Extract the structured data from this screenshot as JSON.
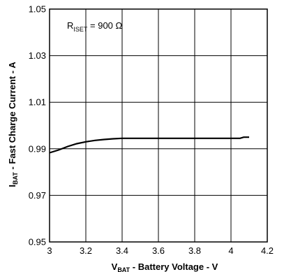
{
  "chart_data": {
    "type": "line",
    "xlabel": {
      "main": "V",
      "sub": "BAT",
      "rest": " - Battery Voltage - V"
    },
    "ylabel": {
      "main": "I",
      "sub": "BAT",
      "rest": " - Fast Charge Current - A"
    },
    "annotation": {
      "main": "R",
      "sub": "ISET",
      "rest": " = 900 Ω"
    },
    "xlim": [
      3,
      4.2
    ],
    "ylim": [
      0.95,
      1.05
    ],
    "x_ticks": [
      "3",
      "3.2",
      "3.4",
      "3.6",
      "3.8",
      "4",
      "4.2"
    ],
    "y_ticks": [
      "0.95",
      "0.97",
      "0.99",
      "1.01",
      "1.03",
      "1.05"
    ],
    "grid": true,
    "series": [
      {
        "x": [
          3.0,
          3.05,
          3.1,
          3.15,
          3.2,
          3.25,
          3.3,
          3.35,
          3.4,
          3.5,
          3.6,
          3.7,
          3.8,
          3.9,
          4.0,
          4.05,
          4.07,
          4.1
        ],
        "y": [
          0.9883,
          0.9895,
          0.991,
          0.9922,
          0.993,
          0.9936,
          0.994,
          0.9943,
          0.9945,
          0.9945,
          0.9945,
          0.9945,
          0.9945,
          0.9945,
          0.9945,
          0.9945,
          0.995,
          0.995
        ]
      }
    ]
  }
}
